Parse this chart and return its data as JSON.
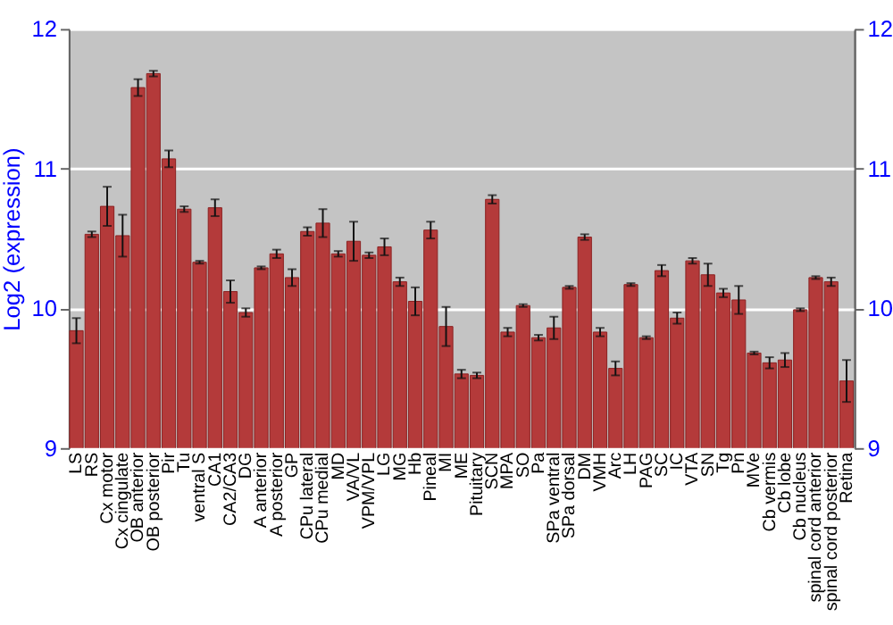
{
  "chart_data": {
    "type": "bar",
    "ylabel": "Log2 (expression)",
    "categories": [
      "LS",
      "RS",
      "Cx motor",
      "Cx cingulate",
      "OB anterior",
      "OB posterior",
      "Pir",
      "Tu",
      "ventral S",
      "CA1",
      "CA2/CA3",
      "DG",
      "A anterior",
      "A posterior",
      "GP",
      "CPu lateral",
      "CPu medial",
      "MD",
      "VA/VL",
      "VPM/VPL",
      "LG",
      "MG",
      "Hb",
      "Pineal",
      "MI",
      "ME",
      "Pituitary",
      "SCN",
      "MPA",
      "SO",
      "Pa",
      "SPa ventral",
      "SPa dorsal",
      "DM",
      "VMH",
      "Arc",
      "LH",
      "PAG",
      "SC",
      "IC",
      "VTA",
      "SN",
      "Tg",
      "Pn",
      "MVe",
      "Cb vermis",
      "Cb lobe",
      "Cb nucleus",
      "spinal cord anterior",
      "spinal cord posterior",
      "Retina"
    ],
    "values": [
      9.84,
      10.53,
      10.73,
      10.52,
      11.58,
      11.68,
      11.07,
      10.71,
      10.33,
      10.72,
      10.12,
      9.97,
      10.29,
      10.39,
      10.22,
      10.55,
      10.61,
      10.39,
      10.48,
      10.38,
      10.44,
      10.19,
      10.05,
      10.56,
      9.87,
      9.53,
      9.52,
      10.78,
      9.83,
      10.02,
      9.79,
      9.86,
      10.15,
      10.51,
      9.83,
      9.57,
      10.17,
      9.79,
      10.27,
      9.93,
      10.34,
      10.24,
      10.11,
      10.06,
      9.68,
      9.61,
      9.63,
      9.99,
      10.22,
      10.19,
      9.48
    ],
    "errors": [
      0.09,
      0.02,
      0.14,
      0.15,
      0.06,
      0.02,
      0.06,
      0.02,
      0.01,
      0.06,
      0.08,
      0.03,
      0.01,
      0.03,
      0.06,
      0.03,
      0.1,
      0.02,
      0.14,
      0.02,
      0.06,
      0.03,
      0.1,
      0.06,
      0.14,
      0.03,
      0.02,
      0.03,
      0.03,
      0.01,
      0.02,
      0.08,
      0.01,
      0.02,
      0.03,
      0.05,
      0.01,
      0.01,
      0.04,
      0.04,
      0.02,
      0.08,
      0.03,
      0.1,
      0.01,
      0.04,
      0.05,
      0.01,
      0.01,
      0.03,
      0.15
    ],
    "color": "#b43a3a",
    "ylim": [
      9,
      12
    ],
    "yticks": [
      9,
      10,
      11,
      12
    ],
    "y2lim": [
      9,
      12
    ],
    "y2ticks": [
      9,
      10,
      11,
      12
    ],
    "grid": "y"
  }
}
